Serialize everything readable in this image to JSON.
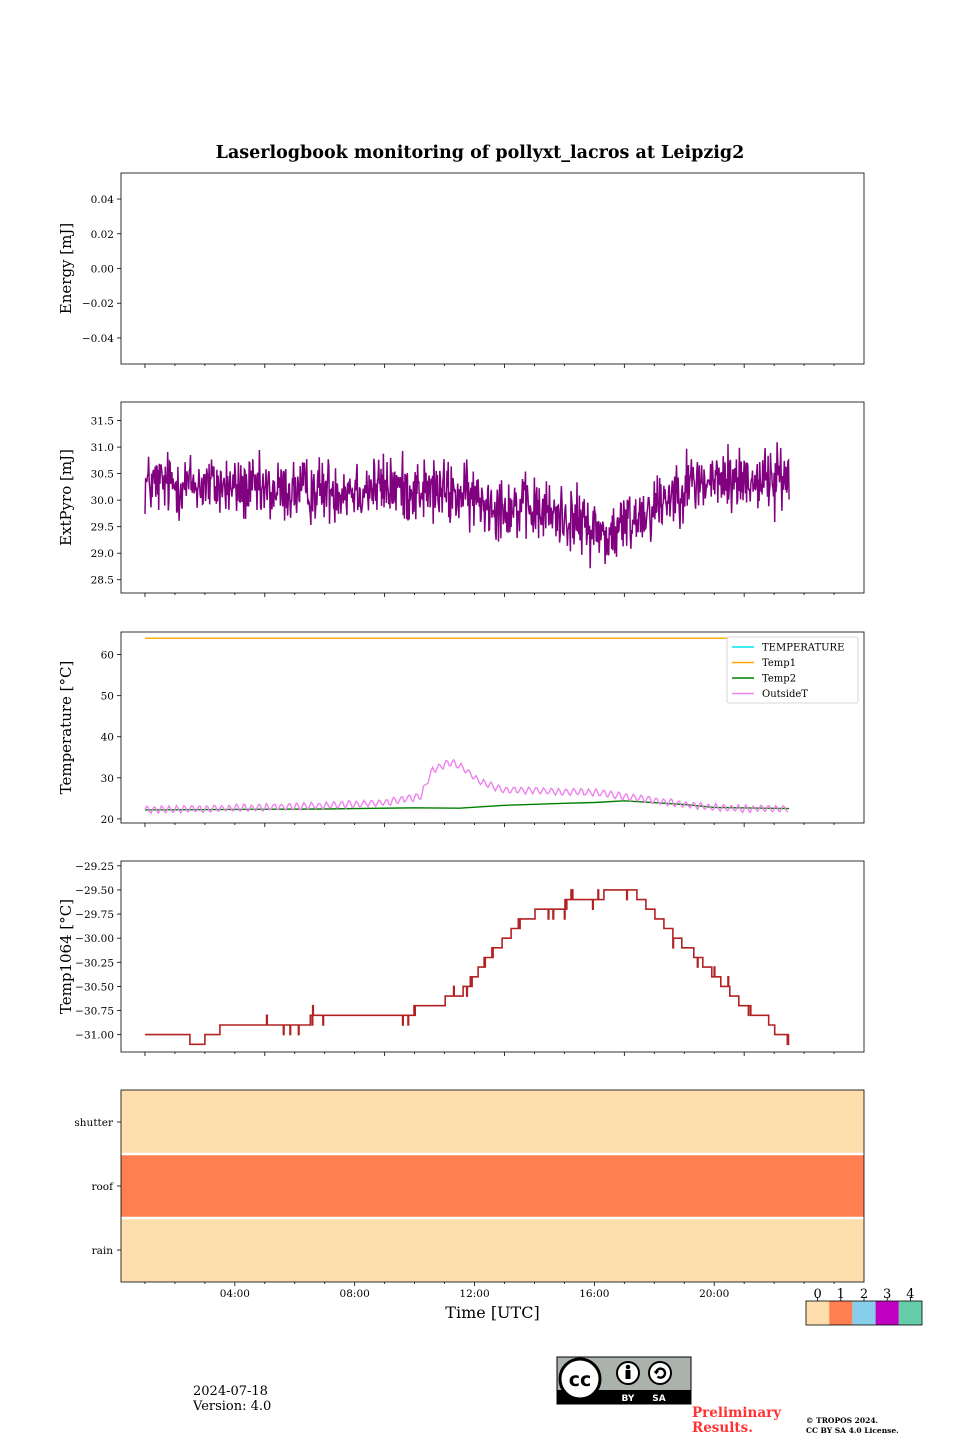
{
  "figure": {
    "title": "Laserlogbook monitoring of pollyxt_lacros at Leipzig2",
    "date": "2024-07-18",
    "version": "Version: 4.0",
    "preliminary": [
      "Preliminary",
      "Results."
    ],
    "copyright": [
      "© TROPOS 2024.",
      "CC BY SA 4.0 License."
    ],
    "license_badge": {
      "top": "cc",
      "by": "BY",
      "sa": "SA"
    }
  },
  "chart_data": [
    {
      "type": "line",
      "name": "energy",
      "ylabel": "Energy [mJ]",
      "ylim": [
        -0.055,
        0.055
      ],
      "yticks": [
        0.04,
        0.02,
        0.0,
        -0.02,
        -0.04
      ],
      "ytick_labels": [
        "0.04",
        "0.02",
        "0.00",
        "−0.02",
        "−0.04"
      ],
      "xlim_hours": [
        -0.8,
        24.0
      ],
      "series": []
    },
    {
      "type": "line",
      "name": "extpyro",
      "ylabel": "ExtPyro [mJ]",
      "ylim": [
        28.25,
        31.85
      ],
      "yticks": [
        31.5,
        31.0,
        30.5,
        30.0,
        29.5,
        29.0,
        28.5
      ],
      "ytick_labels": [
        "31.5",
        "31.0",
        "30.5",
        "30.0",
        "29.5",
        "29.0",
        "28.5"
      ],
      "xlim_hours": [
        -0.8,
        24.0
      ],
      "series": [
        {
          "color": "#800080",
          "noise": 0.45,
          "range": [
            0.0,
            21.5
          ],
          "x": [
            0,
            2,
            4,
            6,
            8,
            10,
            12,
            13,
            14,
            15,
            15.5,
            16,
            17,
            18,
            20,
            21.5
          ],
          "y": [
            30.3,
            30.3,
            30.15,
            30.2,
            30.25,
            30.15,
            29.9,
            29.8,
            29.7,
            29.45,
            29.3,
            29.55,
            29.9,
            30.3,
            30.4,
            30.4
          ]
        }
      ]
    },
    {
      "type": "line",
      "name": "temperature",
      "ylabel": "Temperature [°C]",
      "ylim": [
        19,
        65.5
      ],
      "yticks": [
        60,
        50,
        40,
        30,
        20
      ],
      "ytick_labels": [
        "60",
        "50",
        "40",
        "30",
        "20"
      ],
      "xlim_hours": [
        -0.8,
        24.0
      ],
      "legend": "upper right",
      "series": [
        {
          "name": "TEMPERATURE",
          "color": "#00e5ee",
          "x": [],
          "y": []
        },
        {
          "name": "Temp1",
          "color": "#ffa500",
          "x": [
            0.0,
            21.5
          ],
          "y": [
            64.0,
            64.0
          ]
        },
        {
          "name": "Temp2",
          "color": "#008000",
          "x": [
            0,
            3,
            6,
            9,
            10.5,
            12,
            14,
            15,
            16,
            18,
            19,
            21.5
          ],
          "y": [
            22.2,
            22.3,
            22.4,
            22.7,
            22.6,
            23.3,
            23.8,
            24.0,
            24.4,
            23.5,
            22.8,
            22.5
          ]
        },
        {
          "name": "OutsideT",
          "color": "#ee82ee",
          "wiggle": 0.8,
          "x": [
            0,
            3,
            6,
            8,
            9.2,
            9.6,
            10.2,
            10.6,
            11.2,
            12,
            13,
            14,
            15,
            16,
            17,
            18,
            19,
            20,
            21.5
          ],
          "y": [
            22.2,
            22.6,
            23.2,
            24.0,
            25.5,
            32.0,
            33.8,
            32.5,
            29.0,
            27.0,
            27.0,
            26.5,
            26.5,
            25.5,
            24.5,
            23.5,
            22.8,
            22.5,
            22.5
          ]
        }
      ]
    },
    {
      "type": "line",
      "name": "temp1064",
      "ylabel": "Temp1064 [°C]",
      "ylim": [
        -31.18,
        -29.2
      ],
      "yticks": [
        -29.25,
        -29.5,
        -29.75,
        -30.0,
        -30.25,
        -30.5,
        -30.75,
        -31.0
      ],
      "ytick_labels": [
        "−29.25",
        "−29.50",
        "−29.75",
        "−30.00",
        "−30.25",
        "−30.50",
        "−30.75",
        "−31.00"
      ],
      "xlim_hours": [
        -0.8,
        24.0
      ],
      "series": [
        {
          "color": "#b22222",
          "step": true,
          "x": [
            0,
            1.5,
            2.0,
            2.5,
            4.5,
            5.5,
            7.0,
            9.0,
            10.0,
            10.6,
            10.9,
            11.1,
            11.3,
            11.6,
            11.9,
            12.2,
            12.5,
            13.0,
            14.0,
            15.3,
            16.4,
            16.7,
            17.0,
            17.3,
            17.6,
            17.9,
            18.3,
            18.6,
            18.9,
            19.2,
            19.5,
            19.8,
            20.2,
            20.8,
            21.0,
            21.5
          ],
          "y": [
            -31.0,
            -31.1,
            -31.0,
            -30.9,
            -30.9,
            -30.8,
            -30.8,
            -30.7,
            -30.6,
            -30.5,
            -30.4,
            -30.3,
            -30.2,
            -30.1,
            -30.0,
            -29.9,
            -29.8,
            -29.7,
            -29.6,
            -29.5,
            -29.6,
            -29.7,
            -29.8,
            -29.9,
            -30.0,
            -30.1,
            -30.2,
            -30.3,
            -30.4,
            -30.5,
            -30.6,
            -30.7,
            -30.8,
            -30.9,
            -31.0,
            -30.9
          ]
        }
      ]
    },
    {
      "type": "heatmap",
      "name": "status",
      "categories": [
        "shutter",
        "roof",
        "rain"
      ],
      "values": [
        0,
        1,
        0
      ],
      "xlabel": "Time [UTC]",
      "xlim_hours": [
        -0.8,
        24.0
      ],
      "xticks_hours": [
        3,
        7,
        11,
        15,
        19
      ],
      "xtick_labels": [
        "04:00",
        "08:00",
        "12:00",
        "16:00",
        "20:00"
      ],
      "colorbar": {
        "labels": [
          "0",
          "1",
          "2",
          "3",
          "4"
        ],
        "colors": [
          "#ffdead",
          "#ff7f50",
          "#87ceeb",
          "#c000c0",
          "#66cdaa"
        ]
      }
    }
  ]
}
